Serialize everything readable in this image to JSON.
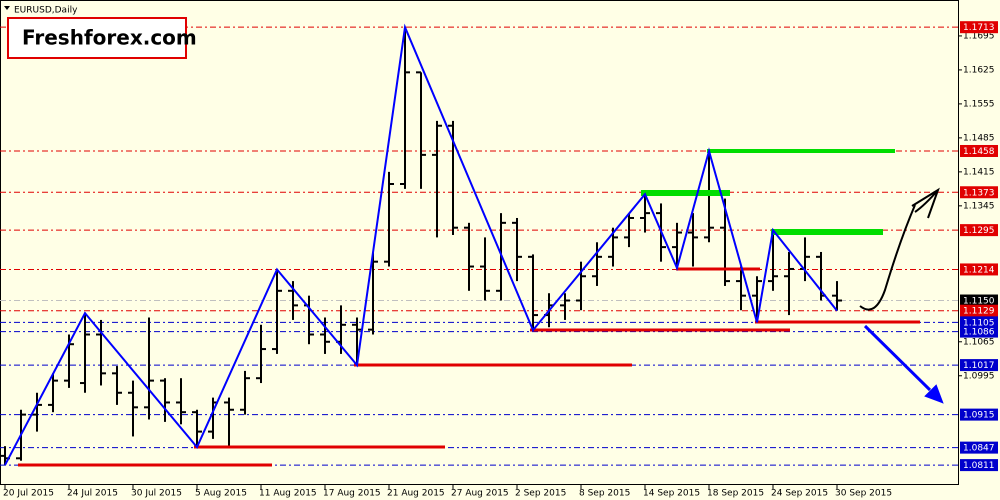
{
  "chart_data": {
    "type": "ohlc",
    "title": "EURUSD,Daily",
    "watermark": "Freshforex.com",
    "categories": [
      "20 Jul 2015",
      null,
      null,
      null,
      "24 Jul 2015",
      null,
      null,
      null,
      "30 Jul 2015",
      null,
      null,
      null,
      "5 Aug 2015",
      null,
      null,
      null,
      "11 Aug 2015",
      null,
      null,
      null,
      "17 Aug 2015",
      null,
      null,
      null,
      "21 Aug 2015",
      null,
      null,
      null,
      "27 Aug 2015",
      null,
      null,
      null,
      "2 Sep 2015",
      null,
      null,
      null,
      "8 Sep 2015",
      null,
      null,
      null,
      "14 Sep 2015",
      null,
      null,
      null,
      "18 Sep 2015",
      null,
      null,
      null,
      "24 Sep 2015",
      null,
      null,
      null,
      "30 Sep 2015"
    ],
    "open": [
      1.083,
      1.0825,
      1.0915,
      1.0935,
      1.0985,
      1.098,
      1.108,
      1.1,
      1.096,
      1.093,
      1.0985,
      1.094,
      1.092,
      1.088,
      1.094,
      1.0925,
      1.099,
      1.105,
      1.117,
      1.114,
      1.108,
      1.1065,
      1.11,
      1.109,
      1.123,
      1.139,
      1.162,
      1.145,
      1.151,
      1.13,
      1.122,
      1.117,
      1.131,
      1.124,
      1.112,
      1.114,
      1.115,
      1.12,
      1.124,
      1.128,
      1.132,
      1.133,
      1.126,
      1.129,
      1.128,
      1.13,
      1.119,
      1.116,
      1.119,
      1.12,
      1.1215,
      1.124,
      1.116
    ],
    "high": [
      1.085,
      1.0925,
      1.096,
      1.1,
      1.108,
      1.1125,
      1.111,
      1.1015,
      1.0985,
      1.1115,
      1.099,
      1.099,
      1.0925,
      1.095,
      1.095,
      1.1005,
      1.11,
      1.1214,
      1.119,
      1.116,
      1.1115,
      1.114,
      1.1115,
      1.125,
      1.1415,
      1.1713,
      1.162,
      1.152,
      1.152,
      1.131,
      1.128,
      1.133,
      1.132,
      1.1245,
      1.1165,
      1.1165,
      1.123,
      1.127,
      1.13,
      1.133,
      1.137,
      1.135,
      1.131,
      1.133,
      1.1458,
      1.136,
      1.122,
      1.12,
      1.1295,
      1.125,
      1.128,
      1.125,
      1.119
    ],
    "low": [
      1.0811,
      1.082,
      1.088,
      1.092,
      1.097,
      1.096,
      1.0975,
      1.0935,
      1.087,
      1.0905,
      1.09,
      1.0895,
      1.0848,
      1.0865,
      1.085,
      1.0915,
      1.098,
      1.104,
      1.111,
      1.106,
      1.104,
      1.104,
      1.1017,
      1.108,
      1.122,
      1.138,
      1.138,
      1.128,
      1.1285,
      1.117,
      1.115,
      1.115,
      1.119,
      1.1089,
      1.1095,
      1.111,
      1.113,
      1.118,
      1.122,
      1.126,
      1.129,
      1.123,
      1.1217,
      1.122,
      1.127,
      1.118,
      1.113,
      1.1105,
      1.117,
      1.112,
      1.119,
      1.115,
      1.1129
    ],
    "close": [
      1.0825,
      1.0915,
      1.0935,
      1.0985,
      1.106,
      1.108,
      1.1,
      1.096,
      1.093,
      1.0985,
      1.094,
      1.092,
      1.088,
      1.094,
      1.0925,
      1.099,
      1.105,
      1.117,
      1.114,
      1.108,
      1.1065,
      1.11,
      1.109,
      1.123,
      1.139,
      1.162,
      1.145,
      1.151,
      1.13,
      1.122,
      1.117,
      1.131,
      1.124,
      1.112,
      1.114,
      1.115,
      1.12,
      1.124,
      1.128,
      1.132,
      1.133,
      1.126,
      1.129,
      1.128,
      1.13,
      1.119,
      1.116,
      1.119,
      1.12,
      1.1215,
      1.124,
      1.116,
      1.115
    ],
    "color": "#000000",
    "zigzag": {
      "x": [
        0,
        5,
        12,
        17,
        22,
        25,
        33,
        40,
        42,
        44,
        47,
        48,
        52
      ],
      "values": [
        1.0811,
        1.1124,
        1.0848,
        1.1214,
        1.1017,
        1.1713,
        1.1089,
        1.1369,
        1.1217,
        1.1458,
        1.1105,
        1.1295,
        1.1129
      ],
      "color": "#0000ff"
    },
    "levels": [
      {
        "value": 1.1713,
        "color": "#e00000"
      },
      {
        "value": 1.1458,
        "color": "#e00000"
      },
      {
        "value": 1.1373,
        "color": "#e00000"
      },
      {
        "value": 1.1295,
        "color": "#e00000"
      },
      {
        "value": 1.1214,
        "color": "#e00000"
      },
      {
        "value": 1.115,
        "label": "1.1150",
        "color": "#000000"
      },
      {
        "value": 1.1129,
        "color": "#e00000"
      },
      {
        "value": 1.1105,
        "color": "#0000cc"
      },
      {
        "value": 1.1086,
        "color": "#0000cc"
      },
      {
        "value": 1.1017,
        "color": "#0000cc"
      },
      {
        "value": 1.0915,
        "color": "#0000cc"
      },
      {
        "value": 1.0847,
        "color": "#0000cc"
      },
      {
        "value": 1.0811,
        "color": "#0000cc"
      }
    ],
    "ylim": [
      1.077,
      1.1769
    ],
    "yticks": [
      1.1695,
      1.1625,
      1.1555,
      1.1485,
      1.1415,
      1.1345,
      1.1065,
      1.0995
    ]
  }
}
